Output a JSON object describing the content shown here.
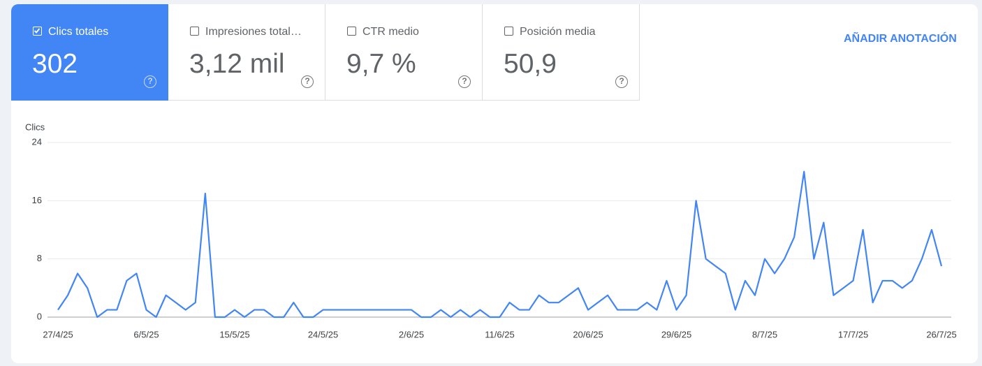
{
  "cards": [
    {
      "label": "Clics totales",
      "value": "302",
      "checked": true
    },
    {
      "label": "Impresiones total…",
      "value": "3,12 mil",
      "checked": false
    },
    {
      "label": "CTR medio",
      "value": "9,7 %",
      "checked": false
    },
    {
      "label": "Posición media",
      "value": "50,9",
      "checked": false
    }
  ],
  "button": "AÑADIR ANOTACIÓN",
  "chart_data": {
    "type": "line",
    "y_label": "Clics",
    "categories": [
      "27/4/25",
      null,
      null,
      null,
      null,
      null,
      null,
      null,
      null,
      "6/5/25",
      null,
      null,
      null,
      null,
      null,
      null,
      null,
      null,
      "15/5/25",
      null,
      null,
      null,
      null,
      null,
      null,
      null,
      null,
      "24/5/25",
      null,
      null,
      null,
      null,
      null,
      null,
      null,
      null,
      "2/6/25",
      null,
      null,
      null,
      null,
      null,
      null,
      null,
      null,
      "11/6/25",
      null,
      null,
      null,
      null,
      null,
      null,
      null,
      null,
      "20/6/25",
      null,
      null,
      null,
      null,
      null,
      null,
      null,
      null,
      "29/6/25",
      null,
      null,
      null,
      null,
      null,
      null,
      null,
      null,
      "8/7/25",
      null,
      null,
      null,
      null,
      null,
      null,
      null,
      null,
      "17/7/25",
      null,
      null,
      null,
      null,
      null,
      null,
      null,
      null,
      "26/7/25"
    ],
    "values": [
      1,
      3,
      6,
      4,
      0,
      1,
      1,
      5,
      6,
      1,
      0,
      3,
      2,
      1,
      2,
      17,
      0,
      0,
      1,
      0,
      1,
      1,
      0,
      0,
      2,
      0,
      0,
      1,
      1,
      1,
      1,
      1,
      1,
      1,
      1,
      1,
      1,
      0,
      0,
      1,
      0,
      1,
      0,
      1,
      0,
      0,
      2,
      1,
      1,
      3,
      2,
      2,
      3,
      4,
      1,
      2,
      3,
      1,
      1,
      1,
      2,
      1,
      5,
      1,
      3,
      16,
      8,
      7,
      6,
      1,
      5,
      3,
      8,
      6,
      8,
      11,
      20,
      8,
      13,
      3,
      4,
      5,
      12,
      2,
      5,
      5,
      4,
      5,
      8,
      12,
      7
    ],
    "color": "#4285f4",
    "ylim": [
      0,
      24
    ],
    "yticks": [
      0,
      8,
      16,
      24
    ],
    "grid": true
  }
}
